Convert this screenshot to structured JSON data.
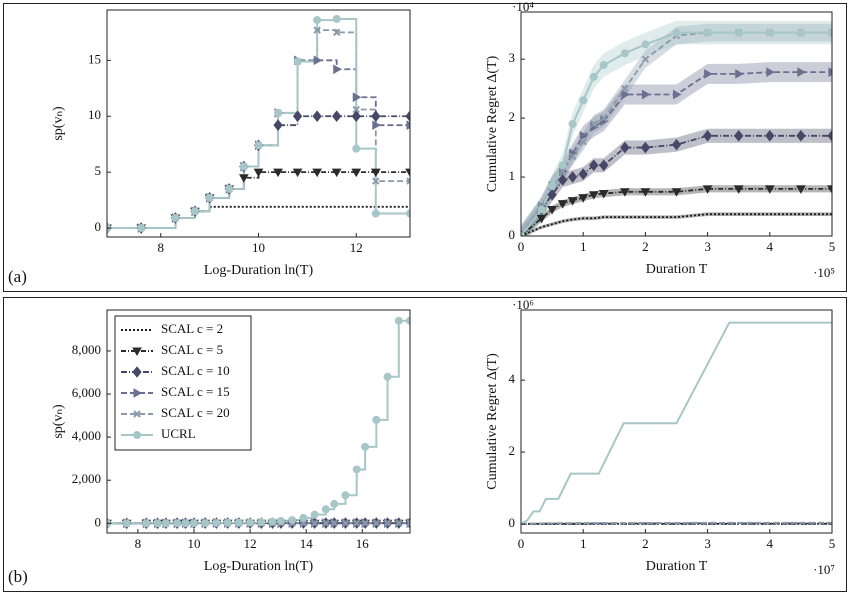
{
  "panels": [
    "(a)",
    "(b)"
  ],
  "chart_data": [
    {
      "type": "line",
      "step": true,
      "ylabel": "sp(vₙ)",
      "xlabel": "Log-Duration ln(T)",
      "xlim": [
        6.9,
        13.1
      ],
      "xticks": [
        8,
        10,
        12
      ],
      "ylim": [
        -0.8,
        19.5
      ],
      "yticks": [
        0,
        5,
        10,
        15
      ],
      "markers": true,
      "x": [
        6.9,
        7.6,
        8.3,
        8.7,
        9.0,
        9.4,
        9.7,
        10.0,
        10.4,
        10.8,
        11.2,
        11.6,
        12.0,
        12.4,
        13.1
      ],
      "series": [
        {
          "name": "SCAL c = 2",
          "color": "#1a1a1a",
          "dash": "2 2",
          "marker": "none",
          "values": [
            0,
            0,
            0.9,
            1.5,
            1.9,
            1.9,
            1.9,
            1.9,
            1.9,
            1.9,
            1.9,
            1.9,
            1.9,
            1.9,
            1.9
          ]
        },
        {
          "name": "SCAL c = 5",
          "color": "#2b2b2b",
          "dash": "5 2 1 2",
          "marker": "tri-down",
          "values": [
            0,
            0,
            0.9,
            1.5,
            2.7,
            3.5,
            4.5,
            5,
            5,
            5,
            5,
            5,
            5,
            5,
            5
          ]
        },
        {
          "name": "SCAL c = 10",
          "color": "#474766",
          "dash": "6 2 1 2",
          "marker": "diamond",
          "values": [
            0,
            0,
            0.9,
            1.5,
            2.7,
            3.5,
            5.5,
            7.4,
            9.2,
            10,
            10,
            10,
            10,
            10,
            10
          ]
        },
        {
          "name": "SCAL c = 15",
          "color": "#6a7090",
          "dash": "6 3",
          "marker": "tri-right",
          "values": [
            0,
            0,
            0.9,
            1.5,
            2.7,
            3.5,
            5.5,
            7.4,
            10.3,
            15,
            15,
            14.2,
            11.7,
            9.2,
            9.2
          ]
        },
        {
          "name": "SCAL c = 20",
          "color": "#8a9aaa",
          "dash": "6 3",
          "marker": "cross",
          "values": [
            0,
            0,
            0.9,
            1.5,
            2.7,
            3.5,
            5.5,
            7.4,
            10.3,
            14.9,
            17.7,
            17.5,
            10.6,
            4.2,
            4.2
          ]
        },
        {
          "name": "UCRL",
          "color": "#a6c6c8",
          "dash": "none",
          "marker": "circle",
          "values": [
            0,
            0,
            0.9,
            1.5,
            2.7,
            3.5,
            5.5,
            7.4,
            10.3,
            14.9,
            18.6,
            18.7,
            7.1,
            1.3,
            1.3
          ]
        }
      ]
    },
    {
      "type": "line",
      "step": false,
      "ylabel": "Cumulative Regret Δ(T)",
      "xlabel": "Duration T",
      "y_multiplier": "·10⁴",
      "x_multiplier": "·10⁵",
      "xlim": [
        0,
        5
      ],
      "xticks": [
        0,
        1,
        2,
        3,
        4,
        5
      ],
      "ylim": [
        0,
        3.8
      ],
      "yticks": [
        0,
        1,
        2,
        3
      ],
      "markers": true,
      "band": true,
      "x": [
        0,
        0.33,
        0.5,
        0.67,
        0.83,
        1.0,
        1.17,
        1.33,
        1.67,
        2.0,
        2.5,
        3.0,
        3.5,
        4.0,
        4.5,
        5.0
      ],
      "series": [
        {
          "name": "SCAL c = 2",
          "color": "#1a1a1a",
          "dash": "2 2",
          "marker": "none",
          "error": 0.03,
          "values": [
            0,
            0.15,
            0.2,
            0.25,
            0.28,
            0.3,
            0.3,
            0.32,
            0.32,
            0.32,
            0.32,
            0.37,
            0.37,
            0.37,
            0.37,
            0.37
          ]
        },
        {
          "name": "SCAL c = 5",
          "color": "#2b2b2b",
          "dash": "5 2 1 2",
          "marker": "tri-down",
          "error": 0.06,
          "values": [
            0,
            0.3,
            0.45,
            0.55,
            0.6,
            0.65,
            0.7,
            0.72,
            0.75,
            0.75,
            0.75,
            0.8,
            0.8,
            0.8,
            0.8,
            0.8
          ]
        },
        {
          "name": "SCAL c = 10",
          "color": "#474766",
          "dash": "6 2 1 2",
          "marker": "diamond",
          "error": 0.12,
          "values": [
            0,
            0.45,
            0.7,
            0.95,
            1.0,
            1.05,
            1.2,
            1.2,
            1.5,
            1.5,
            1.55,
            1.7,
            1.7,
            1.7,
            1.7,
            1.7
          ]
        },
        {
          "name": "SCAL c = 15",
          "color": "#6a7090",
          "dash": "6 3",
          "marker": "tri-right",
          "error": 0.17,
          "values": [
            0,
            0.5,
            0.85,
            1.1,
            1.4,
            1.7,
            1.85,
            1.95,
            2.4,
            2.4,
            2.4,
            2.75,
            2.75,
            2.78,
            2.78,
            2.78
          ]
        },
        {
          "name": "SCAL c = 20",
          "color": "#8a9aaa",
          "dash": "6 3",
          "marker": "cross",
          "error": 0.15,
          "values": [
            0,
            0.5,
            0.85,
            1.1,
            1.35,
            1.6,
            1.9,
            2.0,
            2.5,
            3.0,
            3.4,
            3.45,
            3.45,
            3.45,
            3.45,
            3.45
          ]
        },
        {
          "name": "UCRL",
          "color": "#a6c6c8",
          "dash": "none",
          "marker": "circle",
          "error": 0.2,
          "values": [
            0,
            0.45,
            0.85,
            1.2,
            1.9,
            2.3,
            2.7,
            2.9,
            3.1,
            3.25,
            3.45,
            3.45,
            3.45,
            3.45,
            3.45,
            3.45
          ]
        }
      ]
    },
    {
      "type": "line",
      "step": true,
      "ylabel": "sp(vₙ)",
      "xlabel": "Log-Duration ln(T)",
      "legend": "upper left",
      "xlim": [
        6.9,
        17.7
      ],
      "xticks": [
        8,
        10,
        12,
        14,
        16
      ],
      "ylim": [
        -450,
        9900
      ],
      "yticks": [
        0,
        {
          "value": 2000,
          "label": "2,000"
        },
        {
          "value": 4000,
          "label": "4,000"
        },
        {
          "value": 6000,
          "label": "6,000"
        },
        {
          "value": 8000,
          "label": "8,000"
        }
      ],
      "markers": true,
      "x": [
        6.9,
        7.6,
        8.3,
        8.7,
        9.0,
        9.4,
        9.7,
        10.0,
        10.4,
        10.8,
        11.2,
        11.6,
        12.0,
        12.4,
        12.8,
        13.1,
        13.5,
        13.9,
        14.3,
        14.7,
        15.0,
        15.4,
        15.8,
        16.1,
        16.5,
        16.9,
        17.3,
        17.7
      ],
      "series": [
        {
          "name": "SCAL c = 2",
          "color": "#1a1a1a",
          "dash": "2 2",
          "marker": "none",
          "values": [
            0,
            0,
            0.9,
            1.5,
            1.9,
            1.9,
            1.9,
            1.9,
            1.9,
            1.9,
            1.9,
            1.9,
            1.9,
            1.9,
            1.9,
            1.9,
            1.9,
            1.9,
            1.9,
            1.9,
            1.9,
            1.9,
            1.9,
            1.9,
            1.9,
            1.9,
            1.9,
            1.9
          ]
        },
        {
          "name": "SCAL c = 5",
          "color": "#2b2b2b",
          "dash": "5 2 1 2",
          "marker": "tri-down",
          "values": [
            0,
            0,
            0.9,
            1.5,
            2.7,
            3.5,
            4.5,
            5,
            5,
            5,
            5,
            5,
            5,
            5,
            5,
            5,
            5,
            5,
            5,
            5,
            5,
            5,
            5,
            5,
            5,
            5,
            5,
            5
          ]
        },
        {
          "name": "SCAL c = 10",
          "color": "#474766",
          "dash": "6 2 1 2",
          "marker": "diamond",
          "values": [
            0,
            0,
            0.9,
            1.5,
            2.7,
            3.5,
            5.5,
            7.4,
            9.2,
            10,
            10,
            10,
            10,
            10,
            10,
            10,
            10,
            10,
            10,
            10,
            10,
            10,
            10,
            10,
            10,
            10,
            10,
            10
          ]
        },
        {
          "name": "SCAL c = 15",
          "color": "#6a7090",
          "dash": "6 3",
          "marker": "tri-right",
          "values": [
            0,
            0,
            0.9,
            1.5,
            2.7,
            3.5,
            5.5,
            7.4,
            10.3,
            15,
            15,
            14.2,
            11.7,
            9.2,
            9.2,
            9.2,
            9.2,
            9.2,
            9.2,
            9.2,
            9.2,
            9.2,
            9.2,
            9.2,
            9.2,
            9.2,
            9.2,
            9.2
          ]
        },
        {
          "name": "SCAL c = 20",
          "color": "#8a9aaa",
          "dash": "6 3",
          "marker": "cross",
          "values": [
            0,
            0,
            0.9,
            1.5,
            2.7,
            3.5,
            5.5,
            7.4,
            10.3,
            14.9,
            17.7,
            17.5,
            10.6,
            4.2,
            4.2,
            4.2,
            4.2,
            4.2,
            4.2,
            4.2,
            4.2,
            4.2,
            4.2,
            4.2,
            4.2,
            4.2,
            4.2,
            4.2
          ]
        },
        {
          "name": "UCRL",
          "color": "#a6c6c8",
          "dash": "none",
          "marker": "circle",
          "values": [
            0,
            0,
            1,
            1.5,
            2.7,
            3.5,
            5.5,
            7.4,
            10,
            15,
            19,
            26,
            37,
            52,
            74,
            105,
            150,
            250,
            400,
            650,
            900,
            1300,
            2500,
            3550,
            4800,
            6800,
            9400,
            9400
          ]
        }
      ]
    },
    {
      "type": "line",
      "step": false,
      "ylabel": "Cumulative Regret Δ(T)",
      "xlabel": "Duration T",
      "y_multiplier": "·10⁶",
      "x_multiplier": "·10⁷",
      "xlim": [
        0,
        5
      ],
      "xticks": [
        0,
        1,
        2,
        3,
        4,
        5
      ],
      "ylim": [
        -0.25,
        5.95
      ],
      "yticks": [
        0,
        2,
        4
      ],
      "markers": false,
      "x": [
        0,
        0.1,
        0.2,
        0.3,
        0.4,
        0.6,
        0.8,
        1.25,
        1.65,
        2.5,
        3.35,
        5.0
      ],
      "series": [
        {
          "name": "SCAL c = 2",
          "color": "#1a1a1a",
          "dash": "2 2",
          "marker": "none",
          "values": [
            0,
            0,
            0,
            0,
            0.002,
            0.002,
            0.002,
            0.003,
            0.003,
            0.003,
            0.004,
            0.004
          ]
        },
        {
          "name": "SCAL c = 5",
          "color": "#2b2b2b",
          "dash": "5 2 1 2",
          "marker": "tri-down",
          "values": [
            0,
            0.003,
            0.004,
            0.005,
            0.005,
            0.006,
            0.006,
            0.007,
            0.007,
            0.008,
            0.008,
            0.008
          ]
        },
        {
          "name": "SCAL c = 10",
          "color": "#474766",
          "dash": "6 2 1 2",
          "marker": "diamond",
          "values": [
            0,
            0.005,
            0.007,
            0.009,
            0.01,
            0.011,
            0.012,
            0.013,
            0.015,
            0.016,
            0.017,
            0.017
          ]
        },
        {
          "name": "SCAL c = 15",
          "color": "#6a7090",
          "dash": "6 3",
          "marker": "tri-right",
          "values": [
            0,
            0.008,
            0.011,
            0.014,
            0.016,
            0.018,
            0.02,
            0.022,
            0.024,
            0.026,
            0.028,
            0.028
          ]
        },
        {
          "name": "SCAL c = 20",
          "color": "#8a9aaa",
          "dash": "6 3",
          "marker": "cross",
          "values": [
            0,
            0.01,
            0.014,
            0.018,
            0.02,
            0.023,
            0.026,
            0.028,
            0.03,
            0.032,
            0.035,
            0.035
          ]
        },
        {
          "name": "UCRL",
          "color": "#a6c6c8",
          "dash": "none",
          "marker": "circle",
          "values": [
            0,
            0.1,
            0.35,
            0.35,
            0.7,
            0.7,
            1.4,
            1.4,
            2.8,
            2.8,
            5.6,
            5.6
          ]
        }
      ]
    }
  ]
}
